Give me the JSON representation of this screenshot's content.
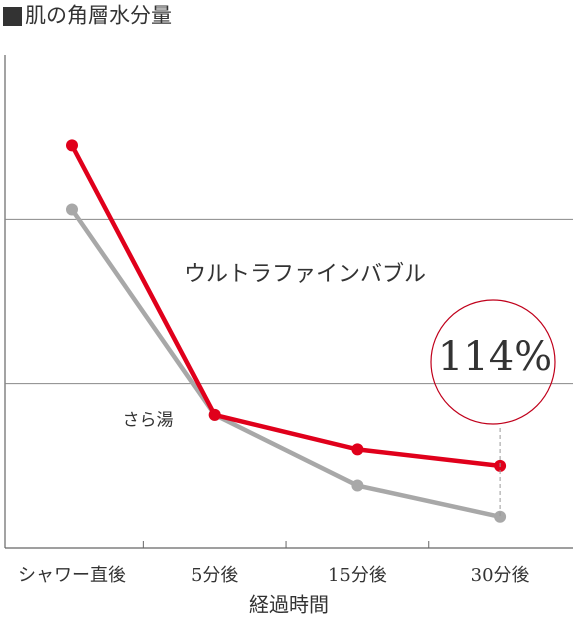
{
  "chart_data": {
    "type": "line",
    "title": "肌の角層水分量",
    "xlabel": "経過時間",
    "categories": [
      "シャワー直後",
      "5分後",
      "15分後",
      "30分後"
    ],
    "series": [
      {
        "name": "ウルトラファインバブル",
        "color": "#e0001b",
        "values": [
          2.45,
          0.81,
          0.6,
          0.5
        ]
      },
      {
        "name": "さら湯",
        "color": "#a8a8a8",
        "values": [
          2.06,
          0.81,
          0.38,
          0.19
        ]
      }
    ],
    "ylim": [
      0,
      3
    ],
    "yticks": [
      1,
      2
    ],
    "grid": true,
    "annotation": "114%"
  }
}
